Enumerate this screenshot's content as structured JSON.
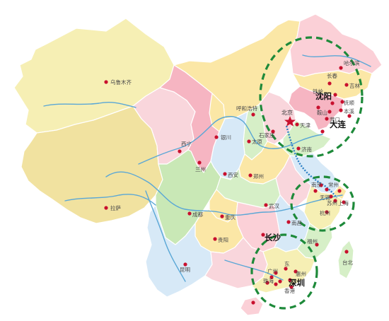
{
  "colors": {
    "ocean": "#ffffff",
    "city_dot": "#c8102e",
    "highlight_circle": "#1e8a3a",
    "river": "#5aa7d6",
    "rail": "#2b7fc4"
  },
  "capital": {
    "name": "北京",
    "icon": "star-icon"
  },
  "cities": {
    "wulumuqi": "乌鲁木齐",
    "lasa": "拉萨",
    "xining": "西宁",
    "lanzhou": "兰州",
    "yinchuan": "银川",
    "huhehaote": "呼和浩特",
    "taiyuan": "太原",
    "shijiazhuang": "石家庄",
    "tianjin": "天津",
    "jinan": "济南",
    "xian": "西安",
    "zhengzhou": "郑州",
    "chengdu": "成都",
    "chongqing": "重庆",
    "guiyang": "贵阳",
    "kunming": "昆明",
    "wuhan": "武汉",
    "nanchang": "南昌",
    "fuzhou": "福州",
    "haerbin": "哈尔滨",
    "changchun": "长春",
    "jilin": "吉林",
    "tieling": "铁岭",
    "fushun": "抚顺",
    "benxi": "本溪",
    "anshan": "鞍山",
    "yingkou": "营口",
    "nanjing": "南京",
    "changzhou": "常州",
    "wuxi": "无锡",
    "suzhou": "苏州",
    "shanghai": "上海",
    "hangzhou": "杭州",
    "guangzhou": "广州",
    "dongguan": "东",
    "huizhou": "惠州",
    "zhuhai": "珠海",
    "xianggang": "香港",
    "taibei": "台北"
  },
  "highlight_cities": {
    "shenyang": "沈阳",
    "dalian": "大连",
    "changsha": "长沙",
    "shenzhen": "深圳"
  }
}
